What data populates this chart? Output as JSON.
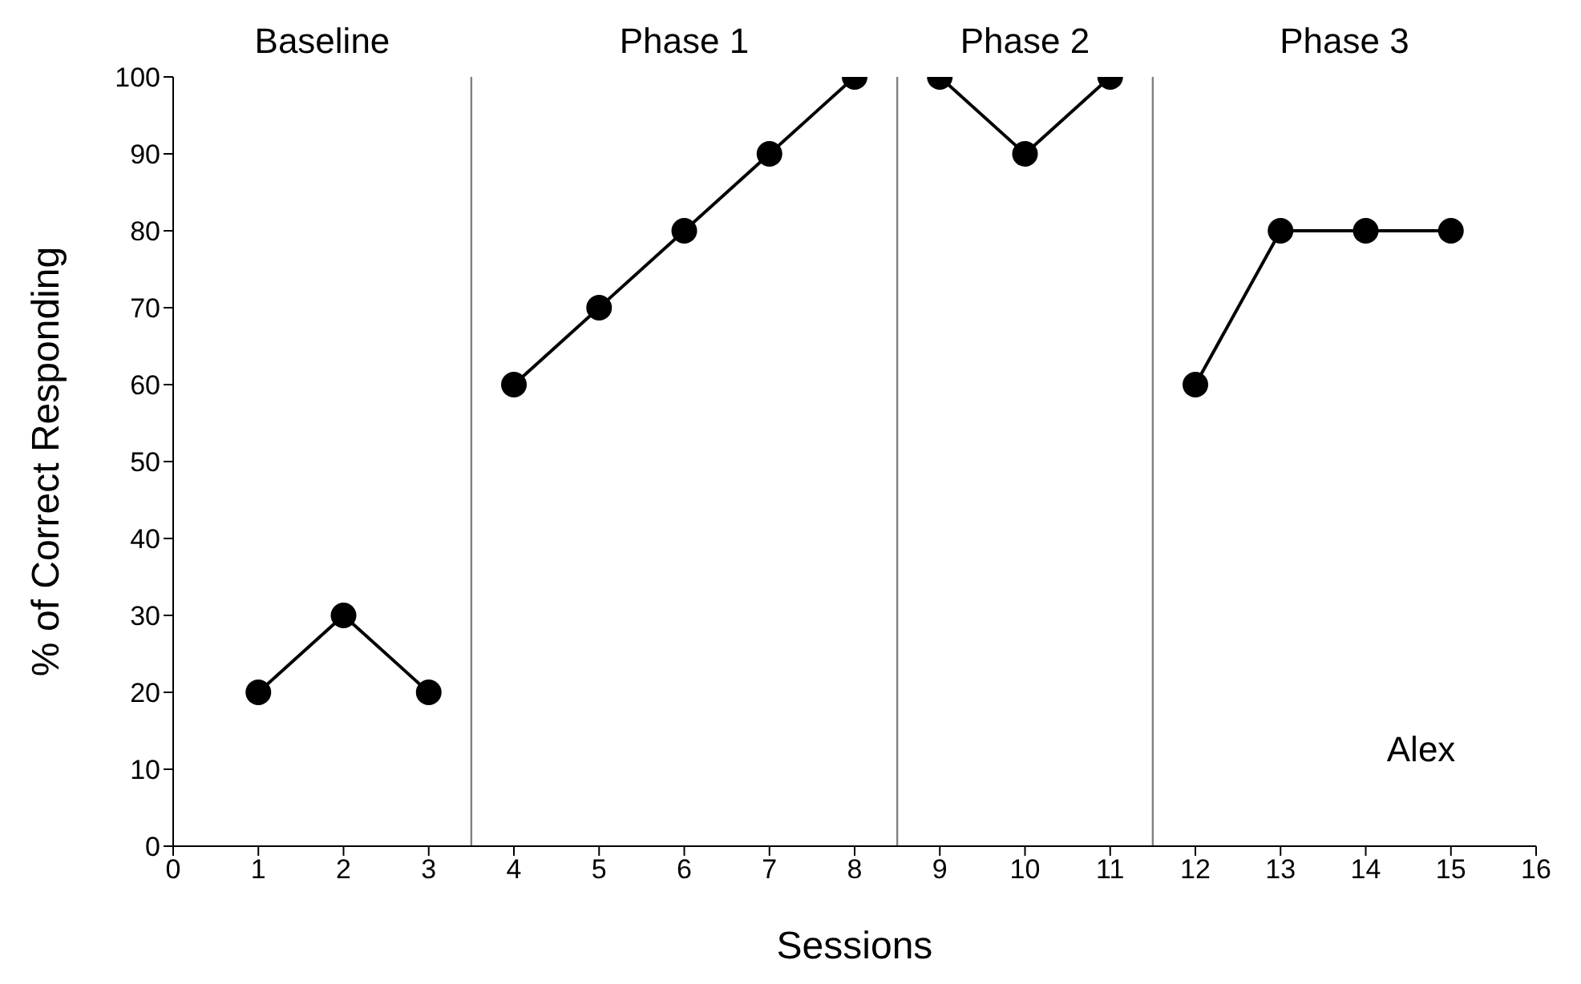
{
  "chart_data": {
    "type": "line",
    "xlabel": "Sessions",
    "ylabel": "% of Correct Responding",
    "xlim": [
      0,
      16
    ],
    "xticks": [
      0,
      1,
      2,
      3,
      4,
      5,
      6,
      7,
      8,
      9,
      10,
      11,
      12,
      13,
      14,
      15,
      16
    ],
    "ylim": [
      0,
      100
    ],
    "yticks": [
      0,
      10,
      20,
      30,
      40,
      50,
      60,
      70,
      80,
      90,
      100
    ],
    "marker": "circle",
    "line_style": "solid",
    "series": [
      {
        "color": "#000000",
        "x": [
          1,
          2,
          3
        ],
        "values": [
          20,
          30,
          20
        ]
      },
      {
        "color": "#000000",
        "x": [
          4,
          5,
          6,
          7,
          8
        ],
        "values": [
          60,
          70,
          80,
          90,
          100
        ]
      },
      {
        "color": "#000000",
        "x": [
          9,
          10,
          11
        ],
        "values": [
          100,
          90,
          100
        ]
      },
      {
        "color": "#000000",
        "x": [
          12,
          13,
          14,
          15
        ],
        "values": [
          60,
          80,
          80,
          80
        ]
      }
    ],
    "ref_lines": [
      {
        "axis": "x",
        "value": 3.5,
        "color": "#808080"
      },
      {
        "axis": "x",
        "value": 8.5,
        "color": "#808080"
      },
      {
        "axis": "x",
        "value": 11.5,
        "color": "#808080"
      }
    ],
    "annotations": [
      "Baseline",
      "Phase 1",
      "Phase 2",
      "Phase 3",
      "Alex"
    ]
  }
}
